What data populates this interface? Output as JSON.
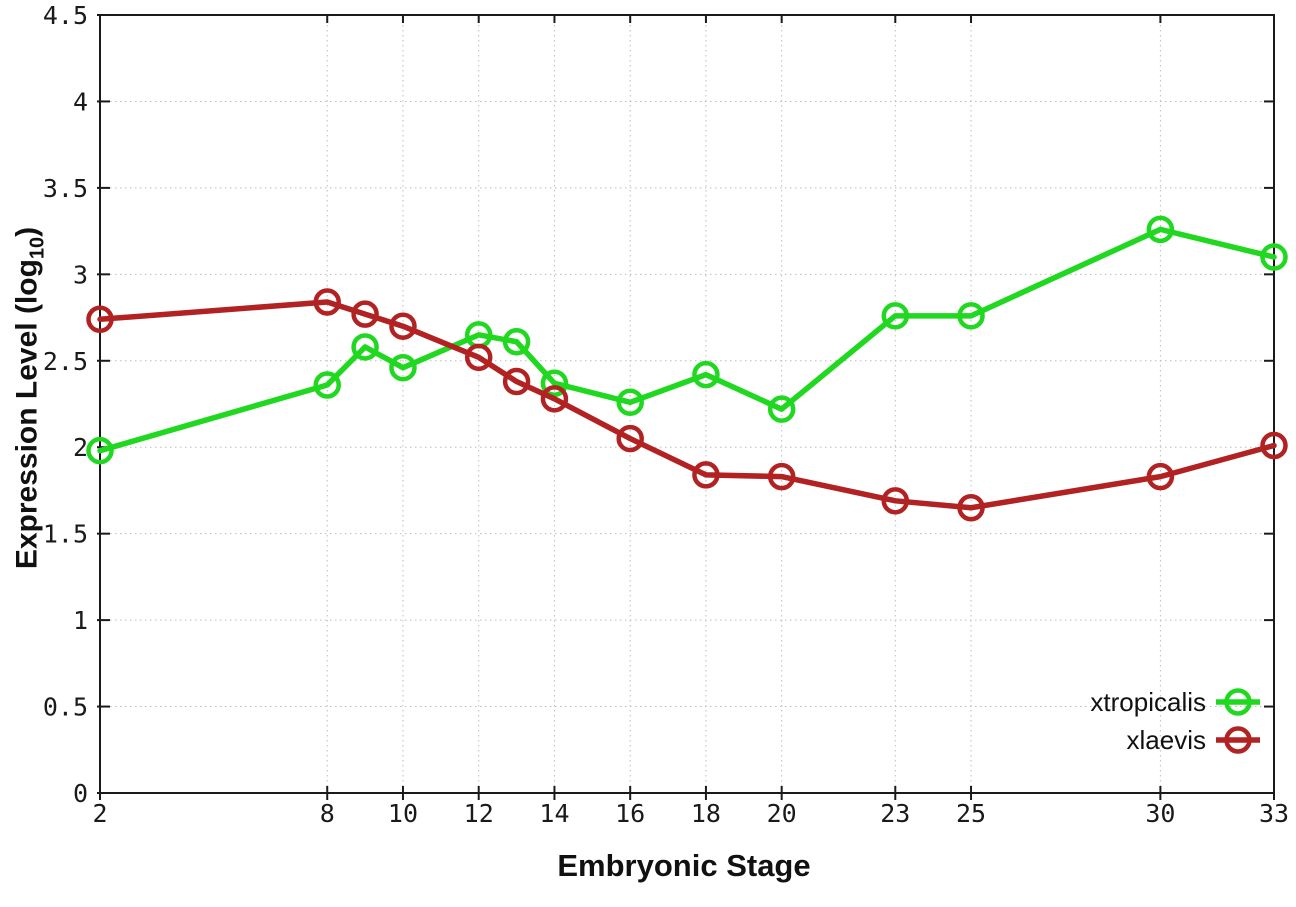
{
  "chart_data": {
    "type": "line",
    "title": "",
    "xlabel": "Embryonic Stage",
    "ylabel": {
      "prefix": "Expression Level (log",
      "sub": "10",
      "suffix": ")"
    },
    "x": [
      2,
      8,
      9,
      10,
      12,
      13,
      14,
      16,
      18,
      20,
      23,
      25,
      30,
      33
    ],
    "series": [
      {
        "name": "xtropicalis",
        "color": "#20d820",
        "values": [
          1.98,
          2.36,
          2.58,
          2.46,
          2.65,
          2.61,
          2.37,
          2.26,
          2.42,
          2.22,
          2.76,
          2.76,
          3.26,
          3.1
        ]
      },
      {
        "name": "xlaevis",
        "color": "#b22222",
        "values": [
          2.74,
          2.84,
          2.77,
          2.7,
          2.52,
          2.38,
          2.28,
          2.05,
          1.84,
          1.83,
          1.69,
          1.65,
          1.83,
          2.01
        ]
      }
    ],
    "x_ticks": [
      2,
      8,
      10,
      12,
      14,
      16,
      18,
      20,
      23,
      25,
      30,
      33
    ],
    "x_tick_labels": [
      "2",
      "8",
      "10",
      "12",
      "14",
      "16",
      "18",
      "20",
      "23",
      "25",
      "30",
      "33"
    ],
    "y_ticks": [
      0,
      0.5,
      1,
      1.5,
      2,
      2.5,
      3,
      3.5,
      4,
      4.5
    ],
    "y_tick_labels": [
      "0",
      "0.5",
      "1",
      "1.5",
      "2",
      "2.5",
      "3",
      "3.5",
      "4",
      "4.5"
    ],
    "xlim": [
      2,
      33
    ],
    "ylim": [
      0,
      4.5
    ],
    "grid": true,
    "legend_position": "bottom-right",
    "style": {
      "grid_color": "#bdbdbd",
      "axis_color": "#1a1a1a",
      "tick_text_color": "#1a1a1a",
      "line_width": 5.5,
      "marker_radius": 11.5,
      "marker_stroke": 4.5
    }
  }
}
